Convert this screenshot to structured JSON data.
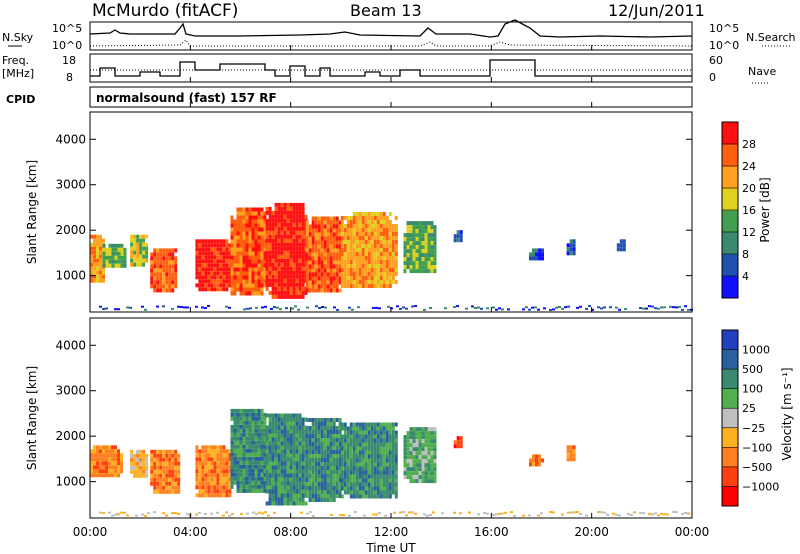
{
  "header": {
    "station": "McMurdo (fitACF)",
    "beam": "Beam 13",
    "date": "12/Jun/2011"
  },
  "top_panel": {
    "left_label": "N.Sky",
    "right_label": "N.Search",
    "left_ticks": [
      "10^5",
      "10^0"
    ],
    "right_ticks": [
      "10^5",
      "10^0"
    ]
  },
  "freq_panel": {
    "left_label_1": "Freq.",
    "left_label_2": "[MHz]",
    "right_label": "Nave",
    "left_ticks": [
      "18",
      "8"
    ],
    "right_ticks": [
      "60",
      "0"
    ]
  },
  "cpid": {
    "label": "CPID",
    "text": "normalsound (fast) 157 RF"
  },
  "x_axis": {
    "label": "Time UT",
    "ticks": [
      "00:00",
      "04:00",
      "08:00",
      "12:00",
      "16:00",
      "20:00",
      "00:00"
    ]
  },
  "colors": {
    "power_scale": [
      "#1010ff",
      "#2050b0",
      "#3a8a70",
      "#40a050",
      "#e0d020",
      "#ffa020",
      "#ff6010",
      "#ff1010"
    ],
    "velocity_scale": [
      "#2040c0",
      "#2a60a0",
      "#3a8a70",
      "#50b050",
      "#c0c0c0",
      "#ffb020",
      "#ff8020",
      "#ff4010",
      "#ff0000"
    ]
  },
  "chart_data": [
    {
      "type": "heatmap",
      "title": "",
      "xlabel": "",
      "ylabel": "Slant Range [km]",
      "xlim": [
        0,
        24
      ],
      "ylim": [
        200,
        4600
      ],
      "yticks": [
        "1000",
        "2000",
        "3000",
        "4000"
      ],
      "colorbar": {
        "label": "Power [dB]",
        "ticks": [
          "4",
          "8",
          "12",
          "16",
          "20",
          "24",
          "28"
        ]
      },
      "regions": [
        {
          "t0": 0.0,
          "t1": 0.5,
          "r0": 900,
          "r1": 1900,
          "level": 5
        },
        {
          "t0": 0.5,
          "t1": 1.4,
          "r0": 1200,
          "r1": 1700,
          "level": 3
        },
        {
          "t0": 1.6,
          "t1": 2.2,
          "r0": 1200,
          "r1": 1900,
          "level": 4
        },
        {
          "t0": 2.4,
          "t1": 3.4,
          "r0": 700,
          "r1": 1600,
          "level": 6
        },
        {
          "t0": 4.2,
          "t1": 5.6,
          "r0": 700,
          "r1": 1800,
          "level": 7
        },
        {
          "t0": 5.6,
          "t1": 7.0,
          "r0": 600,
          "r1": 2500,
          "level": 6
        },
        {
          "t0": 7.0,
          "t1": 8.6,
          "r0": 500,
          "r1": 2600,
          "level": 7
        },
        {
          "t0": 8.6,
          "t1": 10.0,
          "r0": 700,
          "r1": 2300,
          "level": 6
        },
        {
          "t0": 10.0,
          "t1": 12.2,
          "r0": 800,
          "r1": 2400,
          "level": 5
        },
        {
          "t0": 12.5,
          "t1": 13.8,
          "r0": 1100,
          "r1": 2200,
          "level": 3
        },
        {
          "t0": 14.5,
          "t1": 14.8,
          "r0": 1800,
          "r1": 2000,
          "level": 1
        },
        {
          "t0": 17.5,
          "t1": 18.0,
          "r0": 1400,
          "r1": 1600,
          "level": 1
        },
        {
          "t0": 19.0,
          "t1": 19.3,
          "r0": 1500,
          "r1": 1800,
          "level": 1
        },
        {
          "t0": 21.0,
          "t1": 21.3,
          "r0": 1600,
          "r1": 1800,
          "level": 1
        }
      ]
    },
    {
      "type": "heatmap",
      "title": "",
      "xlabel": "Time UT",
      "ylabel": "Slant Range [km]",
      "xlim": [
        0,
        24
      ],
      "ylim": [
        200,
        4600
      ],
      "yticks": [
        "1000",
        "2000",
        "3000",
        "4000"
      ],
      "colorbar": {
        "label": "Velocity [m s⁻¹]",
        "ticks": [
          "1000",
          "500",
          "100",
          "25",
          "−25",
          "−100",
          "−500",
          "−1000"
        ]
      },
      "regions": [
        {
          "t0": 0.0,
          "t1": 1.2,
          "r0": 1100,
          "r1": 1800,
          "level": 6
        },
        {
          "t0": 1.6,
          "t1": 2.2,
          "r0": 1100,
          "r1": 1700,
          "level": 5
        },
        {
          "t0": 2.4,
          "t1": 3.5,
          "r0": 800,
          "r1": 1700,
          "level": 6
        },
        {
          "t0": 4.2,
          "t1": 5.6,
          "r0": 700,
          "r1": 1800,
          "level": 6
        },
        {
          "t0": 5.6,
          "t1": 7.0,
          "r0": 800,
          "r1": 2600,
          "level": 2
        },
        {
          "t0": 7.0,
          "t1": 8.6,
          "r0": 500,
          "r1": 2500,
          "level": 2
        },
        {
          "t0": 8.6,
          "t1": 10.0,
          "r0": 600,
          "r1": 2400,
          "level": 2
        },
        {
          "t0": 10.0,
          "t1": 12.2,
          "r0": 700,
          "r1": 2300,
          "level": 2
        },
        {
          "t0": 12.5,
          "t1": 13.8,
          "r0": 1000,
          "r1": 2200,
          "level": 3
        },
        {
          "t0": 14.5,
          "t1": 14.8,
          "r0": 1800,
          "r1": 2000,
          "level": 7
        },
        {
          "t0": 17.5,
          "t1": 18.0,
          "r0": 1400,
          "r1": 1600,
          "level": 6
        },
        {
          "t0": 19.0,
          "t1": 19.3,
          "r0": 1500,
          "r1": 1800,
          "level": 6
        }
      ]
    }
  ]
}
